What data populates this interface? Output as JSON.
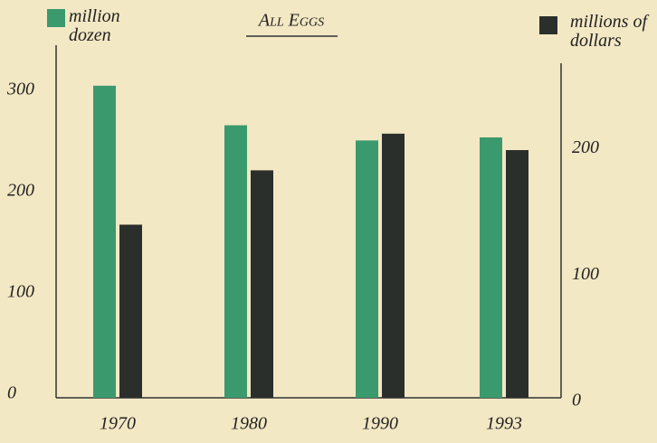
{
  "chart_data": {
    "type": "bar",
    "title": "All Eggs",
    "categories": [
      "1970",
      "1980",
      "1990",
      "1993"
    ],
    "series": [
      {
        "name": "million dozen",
        "color": "#3a9a6e",
        "values": [
          308,
          269,
          254,
          257
        ]
      },
      {
        "name": "millions of dollars",
        "color": "#2b2f2c",
        "axis": "y2",
        "values": [
          137,
          180,
          209,
          196
        ]
      }
    ],
    "ylim": [
      0,
      348
    ],
    "yticks": [
      0,
      100,
      200,
      300
    ],
    "y2lim": [
      0,
      279
    ],
    "y2ticks": [
      0,
      100,
      200
    ],
    "grid": false
  }
}
